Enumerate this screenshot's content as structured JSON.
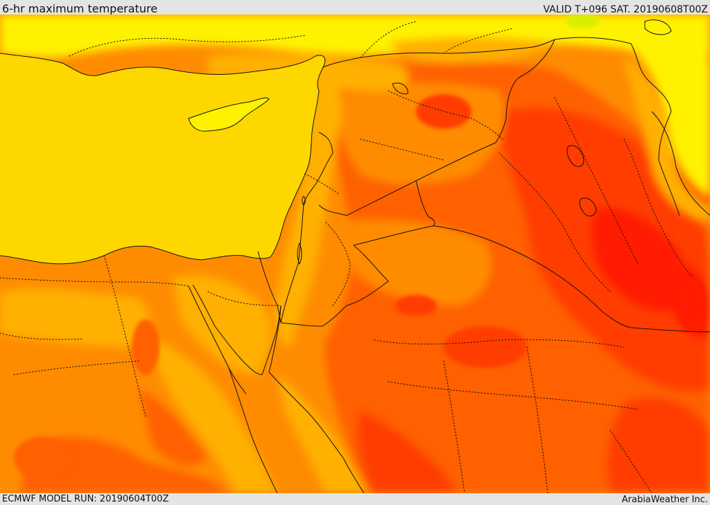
{
  "header": {
    "title": "6-hr maximum temperature",
    "valid": "VALID T+096 SAT. 20190608T00Z"
  },
  "footer": {
    "model_run": "ECMWF MODEL RUN: 20190604T00Z",
    "credit": "ArabiaWeather Inc."
  },
  "map": {
    "field": "6-hr maximum temperature",
    "palette": {
      "sea": "#ffd700",
      "cool": "#fff200",
      "mild": "#ffb000",
      "warm": "#ff8c00",
      "hot": "#ff6000",
      "very_hot": "#ff3c00",
      "extreme": "#ff1e00",
      "north_green": "#d8f000",
      "border": "#111111"
    }
  }
}
